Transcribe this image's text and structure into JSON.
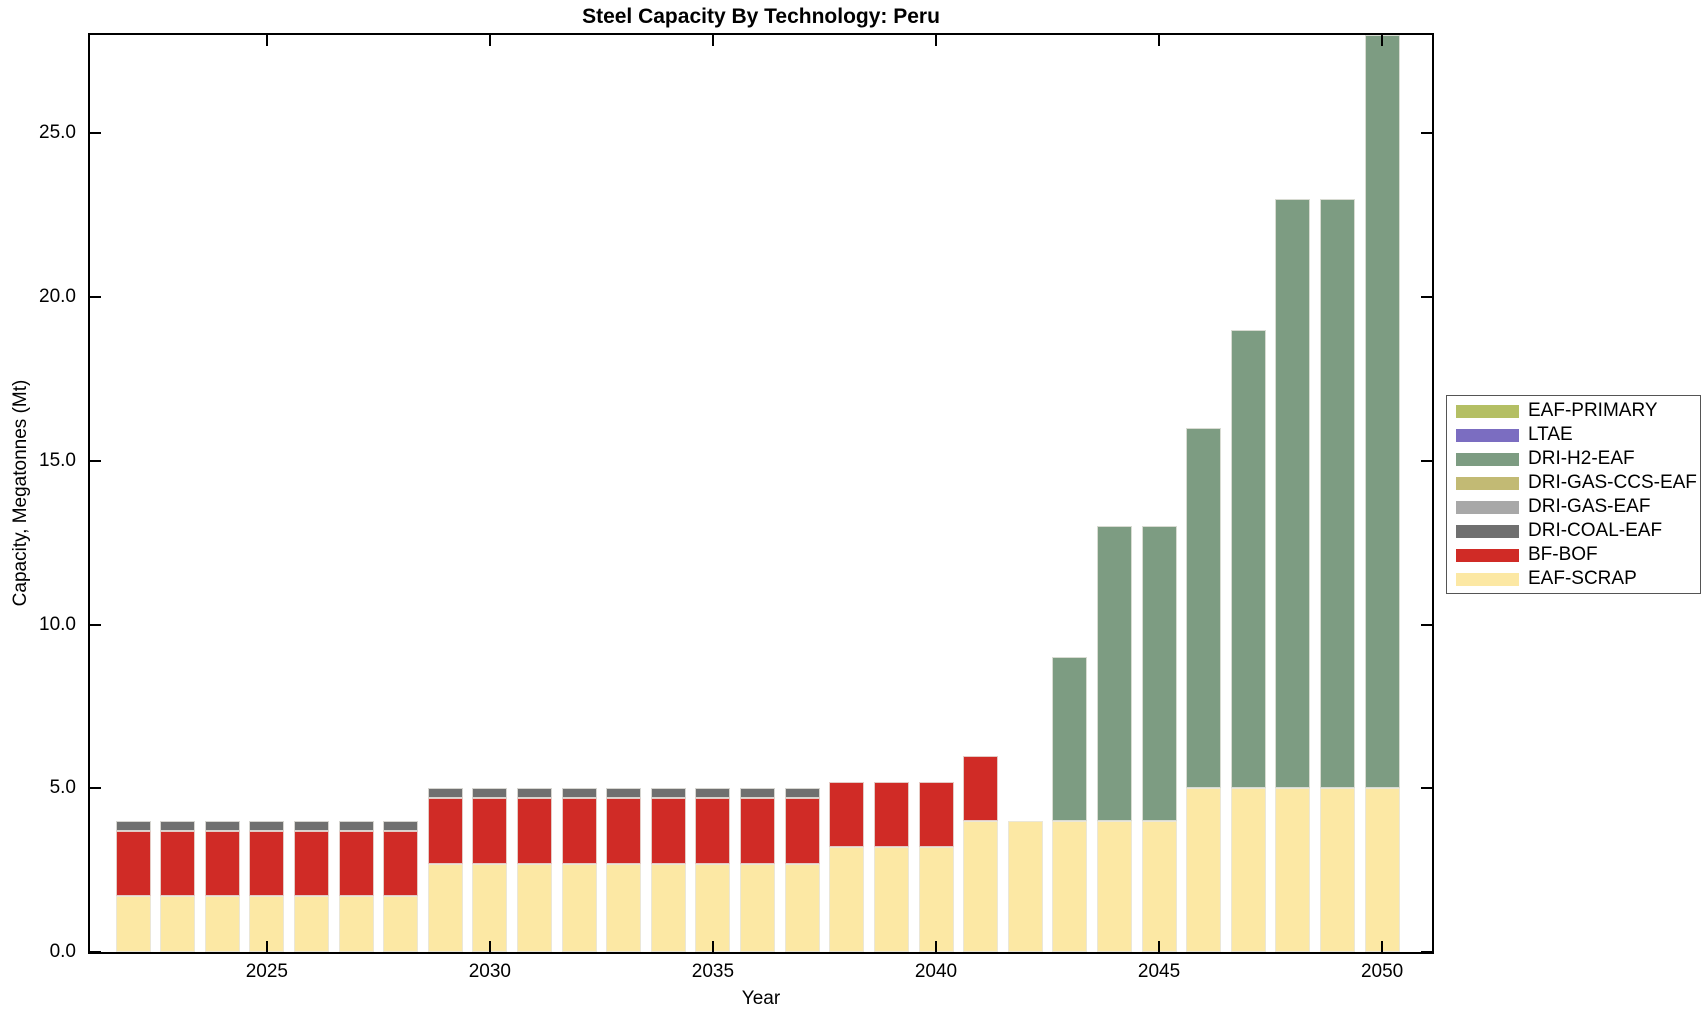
{
  "title": "Steel Capacity By Technology: Peru",
  "x_axis_label": "Year",
  "y_axis_label": "Capacity, Megatonnes (Mt)",
  "chart_data": {
    "type": "bar",
    "stacked": true,
    "title": "Steel Capacity By Technology: Peru",
    "xlabel": "Year",
    "ylabel": "Capacity, Megatonnes (Mt)",
    "grid": false,
    "ylim": [
      0,
      28
    ],
    "yticks": {
      "values": [
        0,
        5,
        10,
        15,
        20,
        25
      ],
      "labels": [
        "0.0",
        "5.0",
        "10.0",
        "15.0",
        "20.0",
        "25.0"
      ]
    },
    "xticks": {
      "values": [
        2025,
        2030,
        2035,
        2040,
        2045,
        2050
      ],
      "labels": [
        "2025",
        "2030",
        "2035",
        "2040",
        "2045",
        "2050"
      ]
    },
    "x": [
      2022,
      2023,
      2024,
      2025,
      2026,
      2027,
      2028,
      2029,
      2030,
      2031,
      2032,
      2033,
      2034,
      2035,
      2036,
      2037,
      2038,
      2039,
      2040,
      2041,
      2042,
      2043,
      2044,
      2045,
      2046,
      2047,
      2048,
      2049,
      2050
    ],
    "series_note": "series listed in stacking order bottom-to-top; empty values array = zero capacity every year (series appears in legend only)",
    "series": [
      {
        "name": "EAF-SCRAP",
        "color": "#fce8a4",
        "values": [
          1.7,
          1.7,
          1.7,
          1.7,
          1.7,
          1.7,
          1.7,
          2.7,
          2.7,
          2.7,
          2.7,
          2.7,
          2.7,
          2.7,
          2.7,
          2.7,
          3.2,
          3.2,
          3.2,
          4,
          4,
          4,
          4,
          4,
          5,
          5,
          5,
          5,
          5
        ]
      },
      {
        "name": "BF-BOF",
        "color": "#d02b26",
        "values": [
          2,
          2,
          2,
          2,
          2,
          2,
          2,
          2,
          2,
          2,
          2,
          2,
          2,
          2,
          2,
          2,
          2,
          2,
          2,
          2,
          0,
          0,
          0,
          0,
          0,
          0,
          0,
          0,
          0
        ]
      },
      {
        "name": "DRI-COAL-EAF",
        "color": "#707070",
        "values": [
          0.3,
          0.3,
          0.3,
          0.3,
          0.3,
          0.3,
          0.3,
          0.3,
          0.3,
          0.3,
          0.3,
          0.3,
          0.3,
          0.3,
          0.3,
          0.3,
          0,
          0,
          0,
          0,
          0,
          0,
          0,
          0,
          0,
          0,
          0,
          0,
          0
        ]
      },
      {
        "name": "DRI-GAS-EAF",
        "color": "#a8a8a8",
        "values": []
      },
      {
        "name": "DRI-GAS-CCS-EAF",
        "color": "#c2ba74",
        "values": []
      },
      {
        "name": "DRI-H2-EAF",
        "color": "#7d9c82",
        "values": [
          0,
          0,
          0,
          0,
          0,
          0,
          0,
          0,
          0,
          0,
          0,
          0,
          0,
          0,
          0,
          0,
          0,
          0,
          0,
          0,
          0,
          5,
          9,
          9,
          11,
          14,
          18,
          18,
          23
        ]
      },
      {
        "name": "LTAE",
        "color": "#7b6dc1",
        "values": []
      },
      {
        "name": "EAF-PRIMARY",
        "color": "#b4bf64",
        "values": []
      }
    ],
    "legend": {
      "position": "right-outside",
      "entries": [
        {
          "label": "EAF-PRIMARY",
          "color": "#b4bf64"
        },
        {
          "label": "LTAE",
          "color": "#7b6dc1"
        },
        {
          "label": "DRI-H2-EAF",
          "color": "#7d9c82"
        },
        {
          "label": "DRI-GAS-CCS-EAF",
          "color": "#c2ba74"
        },
        {
          "label": "DRI-GAS-EAF",
          "color": "#a8a8a8"
        },
        {
          "label": "DRI-COAL-EAF",
          "color": "#707070"
        },
        {
          "label": "BF-BOF",
          "color": "#d02b26"
        },
        {
          "label": "EAF-SCRAP",
          "color": "#fce8a4"
        }
      ]
    }
  }
}
